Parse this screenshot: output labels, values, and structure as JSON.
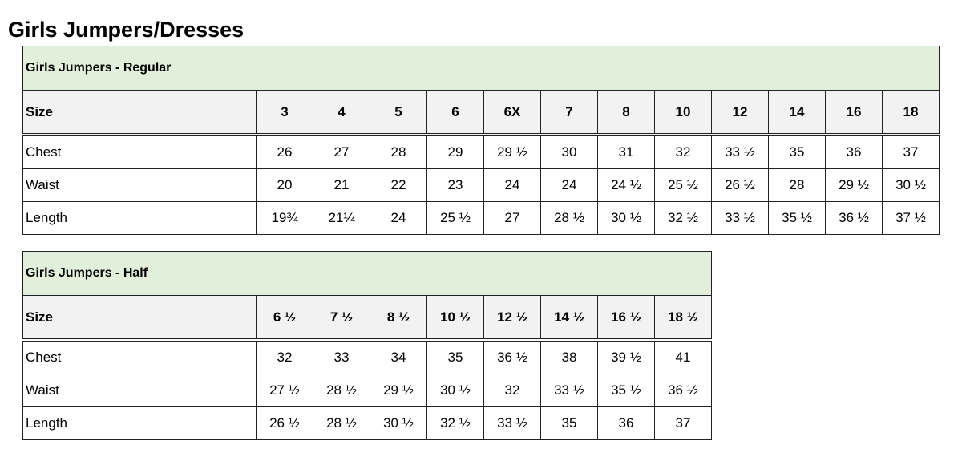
{
  "page_title": "Girls Jumpers/Dresses",
  "tables": [
    {
      "caption": "Girls Jumpers - Regular",
      "size_label": "Size",
      "sizes": [
        "3",
        "4",
        "5",
        "6",
        "6X",
        "7",
        "8",
        "10",
        "12",
        "14",
        "16",
        "18"
      ],
      "rows": [
        {
          "label": "Chest",
          "values": [
            "26",
            "27",
            "28",
            "29",
            "29 ½",
            "30",
            "31",
            "32",
            "33 ½",
            "35",
            "36",
            "37"
          ]
        },
        {
          "label": "Waist",
          "values": [
            "20",
            "21",
            "22",
            "23",
            "24",
            "24",
            "24 ½",
            "25 ½",
            "26 ½",
            "28",
            "29 ½",
            "30 ½"
          ]
        },
        {
          "label": "Length",
          "values": [
            "19¾",
            "21¼",
            "24",
            "25 ½",
            "27",
            "28 ½",
            "30 ½",
            "32 ½",
            "33 ½",
            "35 ½",
            "36 ½",
            "37 ½"
          ]
        }
      ]
    },
    {
      "caption": "Girls Jumpers - Half",
      "size_label": "Size",
      "sizes": [
        "6 ½",
        "7 ½",
        "8 ½",
        "10 ½",
        "12 ½",
        "14 ½",
        "16 ½",
        "18 ½"
      ],
      "rows": [
        {
          "label": "Chest",
          "values": [
            "32",
            "33",
            "34",
            "35",
            "36 ½",
            "38",
            "39 ½",
            "41"
          ]
        },
        {
          "label": "Waist",
          "values": [
            "27 ½",
            "28 ½",
            "29 ½",
            "30 ½",
            "32",
            "33 ½",
            "35 ½",
            "36 ½"
          ]
        },
        {
          "label": "Length",
          "values": [
            "26 ½",
            "28 ½",
            "30 ½",
            "32 ½",
            "33 ½",
            "35",
            "36",
            "37"
          ]
        }
      ]
    }
  ]
}
